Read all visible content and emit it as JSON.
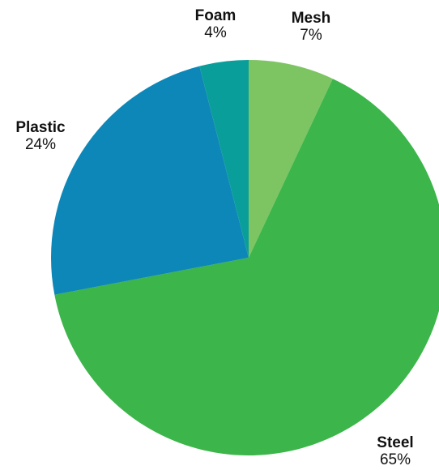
{
  "chart_data": {
    "type": "pie",
    "title": "",
    "slices": [
      {
        "label": "Mesh",
        "value": 7,
        "value_label": "7%",
        "color": "#7dc462"
      },
      {
        "label": "Steel",
        "value": 65,
        "value_label": "65%",
        "color": "#3cb54a"
      },
      {
        "label": "Plastic",
        "value": 24,
        "value_label": "24%",
        "color": "#0d87b8"
      },
      {
        "label": "Foam",
        "value": 4,
        "value_label": "4%",
        "color": "#0a9e9a"
      }
    ],
    "start_angle": "12 o'clock",
    "direction": "clockwise"
  }
}
